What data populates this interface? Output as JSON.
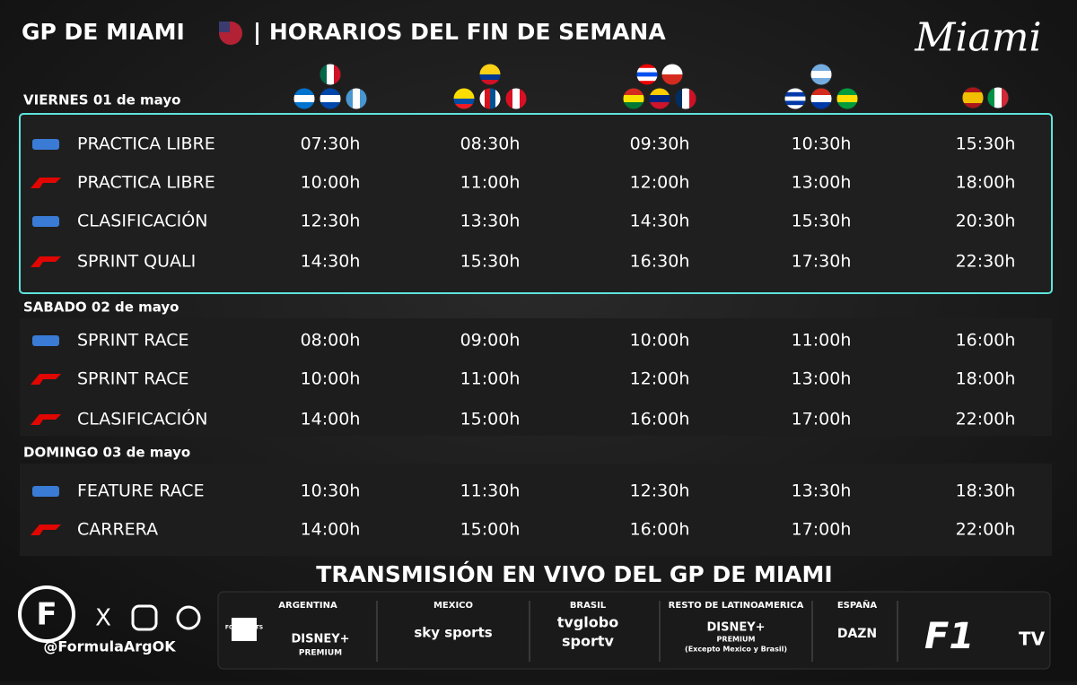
{
  "header": {
    "title": "GP DE MIAMI",
    "subtitle": "| HORARIOS DEL FIN DE SEMANA",
    "brand": "Miami"
  },
  "days": [
    {
      "label": "VIERNES 01 de mayo",
      "sessions": [
        {
          "series": "F2",
          "name": "PRACTICA LIBRE",
          "times": [
            "07:30h",
            "08:30h",
            "09:30h",
            "10:30h",
            "15:30h"
          ]
        },
        {
          "series": "F1",
          "name": "PRACTICA LIBRE",
          "times": [
            "10:00h",
            "11:00h",
            "12:00h",
            "13:00h",
            "18:00h"
          ]
        },
        {
          "series": "F2",
          "name": "CLASIFICACIÓN",
          "times": [
            "12:30h",
            "13:30h",
            "14:30h",
            "15:30h",
            "20:30h"
          ]
        },
        {
          "series": "F1",
          "name": "SPRINT QUALI",
          "times": [
            "14:30h",
            "15:30h",
            "16:30h",
            "17:30h",
            "22:30h"
          ]
        }
      ]
    },
    {
      "label": "SABADO 02 de mayo",
      "sessions": [
        {
          "series": "F2",
          "name": "SPRINT RACE",
          "times": [
            "08:00h",
            "09:00h",
            "10:00h",
            "11:00h",
            "16:00h"
          ]
        },
        {
          "series": "F1",
          "name": "SPRINT RACE",
          "times": [
            "10:00h",
            "11:00h",
            "12:00h",
            "13:00h",
            "18:00h"
          ]
        },
        {
          "series": "F1",
          "name": "CLASIFICACIÓN",
          "times": [
            "14:00h",
            "15:00h",
            "16:00h",
            "17:00h",
            "22:00h"
          ]
        }
      ]
    },
    {
      "label": "DOMINGO 03 de mayo",
      "sessions": [
        {
          "series": "F2",
          "name": "FEATURE RACE",
          "times": [
            "10:30h",
            "11:30h",
            "12:30h",
            "13:30h",
            "18:30h"
          ]
        },
        {
          "series": "F1",
          "name": "CARRERA",
          "times": [
            "14:00h",
            "15:00h",
            "16:00h",
            "17:00h",
            "22:00h"
          ]
        }
      ]
    }
  ],
  "broadcast": {
    "title": "TRANSMISIÓN EN VIVO DEL GP DE MIAMI",
    "regions": [
      {
        "label": "ARGENTINA",
        "channels": [
          "FOX SPORTS",
          "DISNEY+",
          "PREMIUM"
        ]
      },
      {
        "label": "MEXICO",
        "channels": [
          "sky sports"
        ]
      },
      {
        "label": "BRASIL",
        "channels": [
          "tvglobo",
          "sportv"
        ]
      },
      {
        "label": "RESTO DE LATINOAMERICA",
        "channels": [
          "DISNEY+",
          "PREMIUM",
          "(Excepto Mexico y Brasil)"
        ]
      },
      {
        "label": "ESPAÑA",
        "channels": [
          "DAZN"
        ]
      }
    ],
    "global": "TV"
  },
  "footer": {
    "handle": "@FormulaArgOK"
  }
}
